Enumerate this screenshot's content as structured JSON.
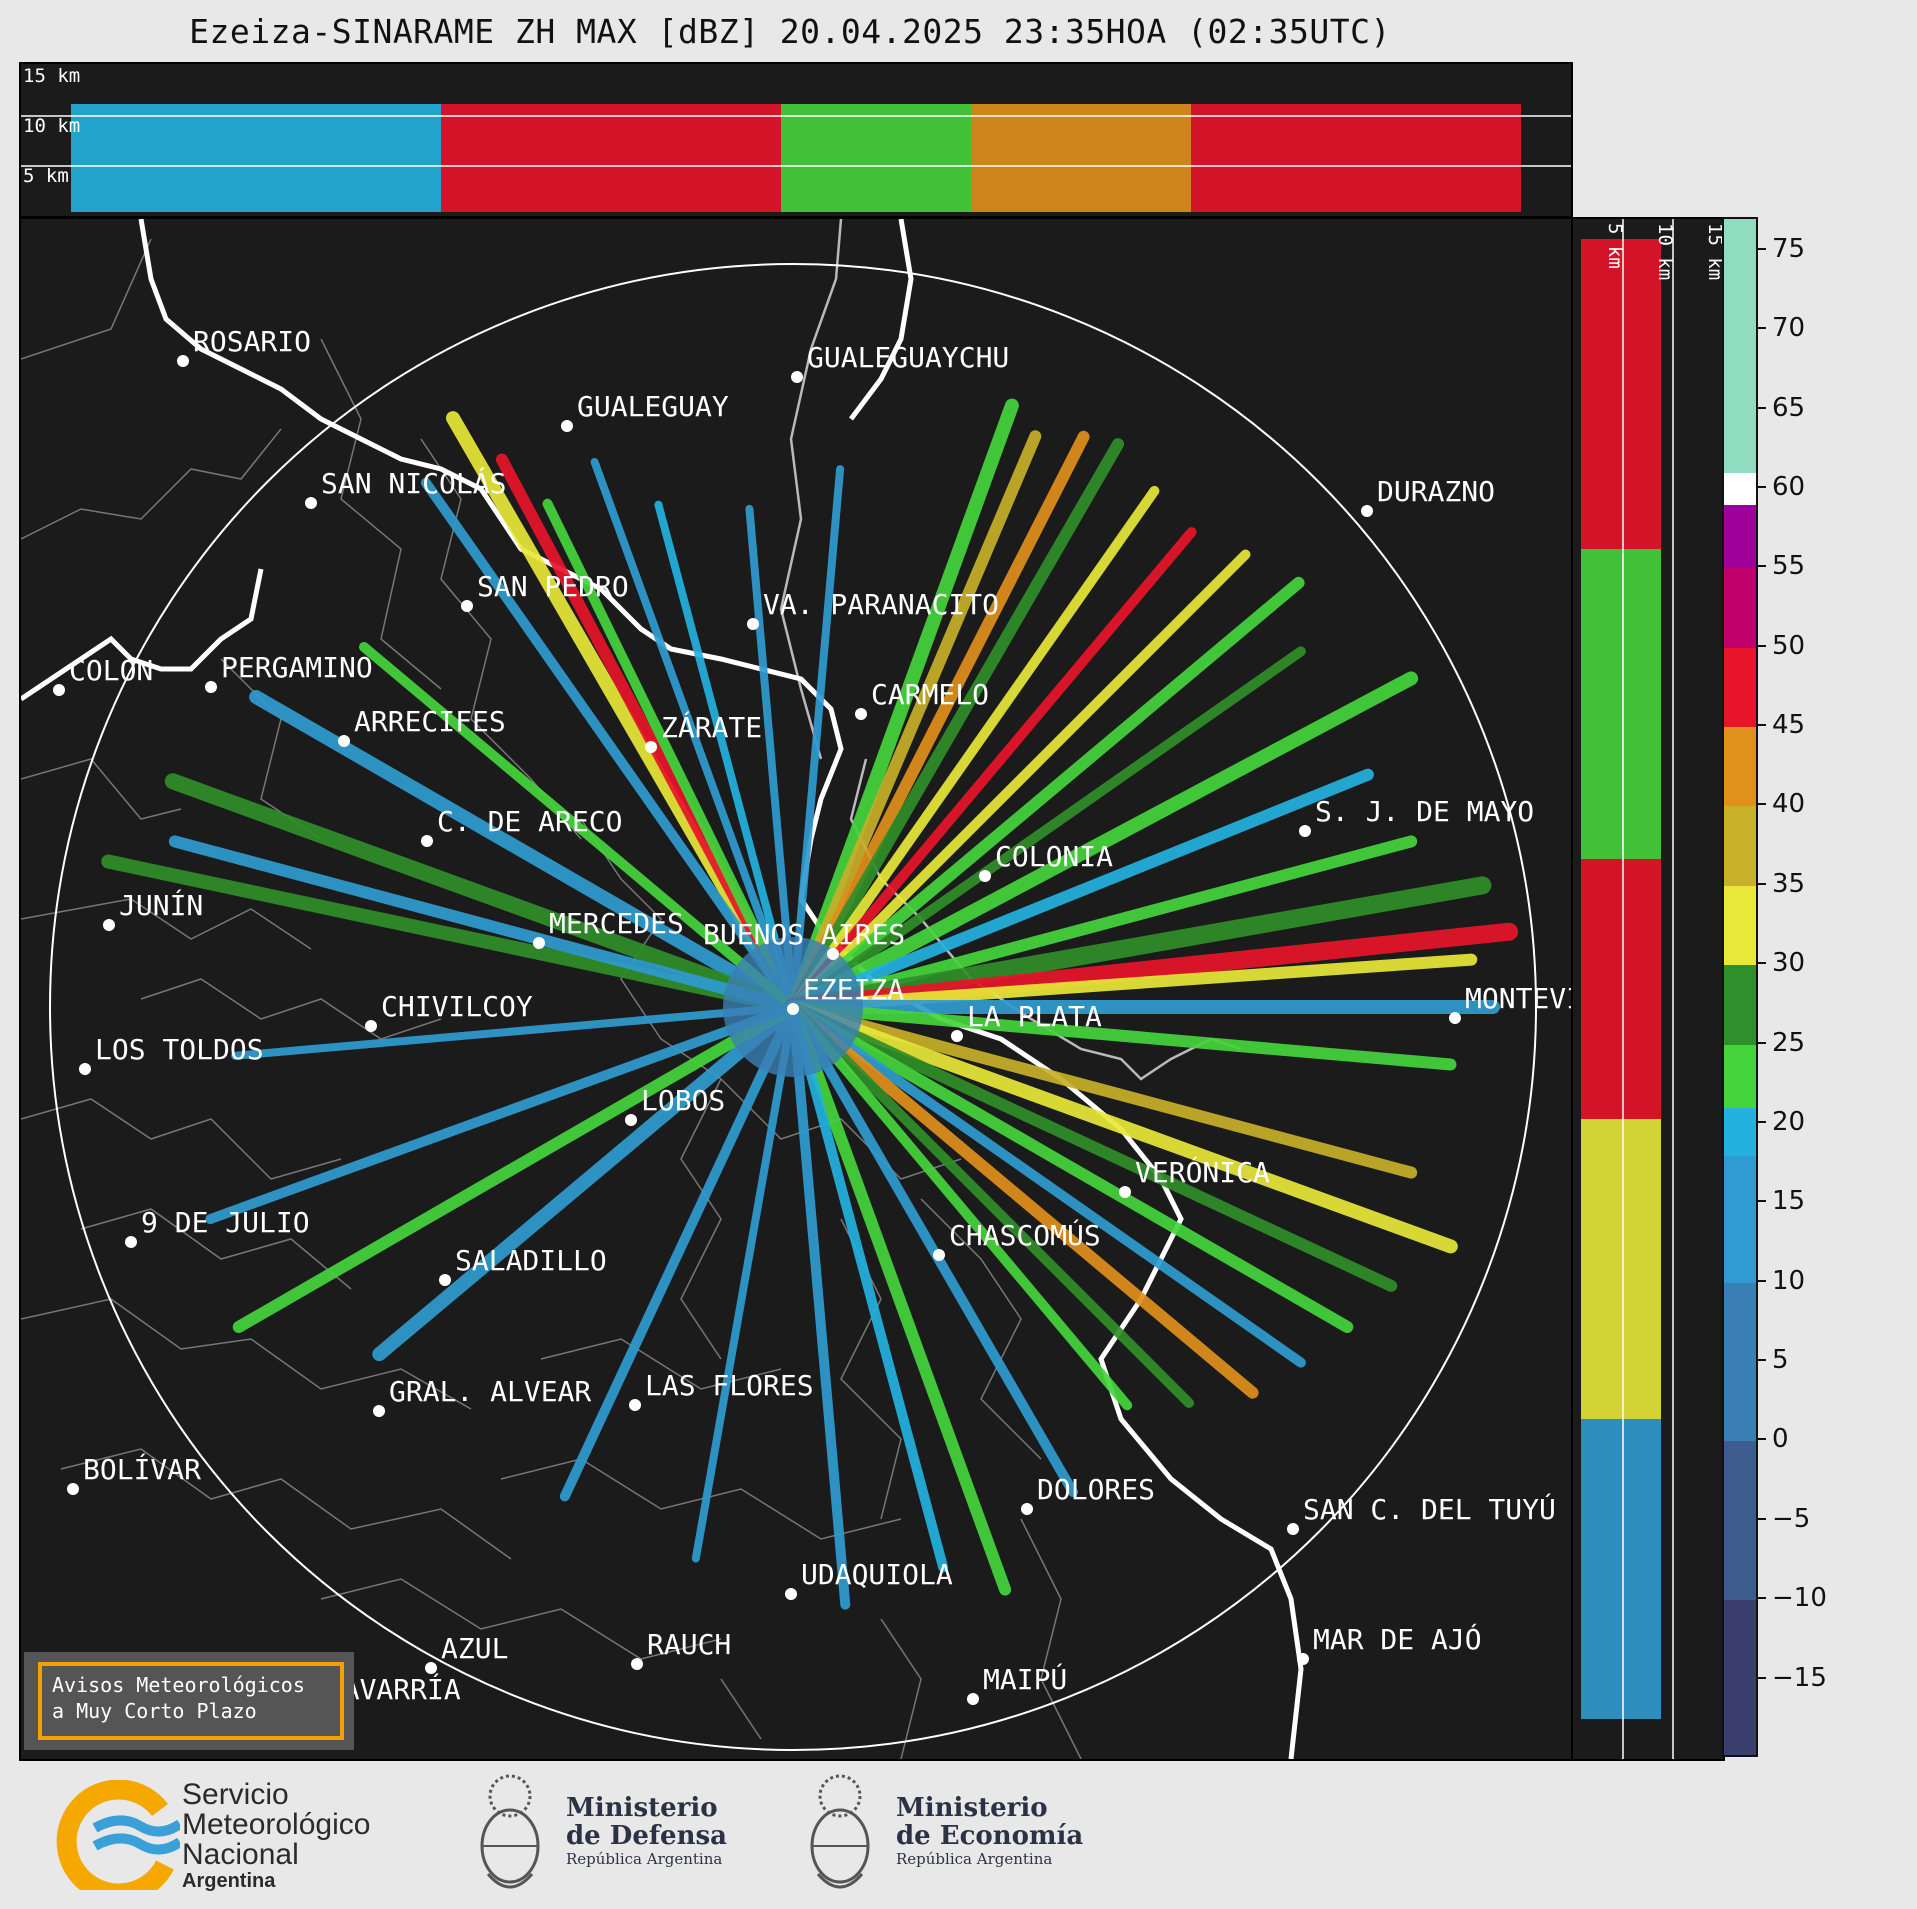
{
  "title": "Ezeiza-SINARAME ZH MAX [dBZ] 20.04.2025 23:35HOA (02:35UTC)",
  "height_labels": [
    "15 km",
    "10 km",
    "5 km"
  ],
  "colorbar": {
    "unit": "dBZ",
    "ticks": [
      "75",
      "70",
      "65",
      "60",
      "55",
      "50",
      "45",
      "40",
      "35",
      "30",
      "25",
      "20",
      "15",
      "10",
      "5",
      "0",
      "−5",
      "−10",
      "−15"
    ],
    "min": -20,
    "max": 77,
    "bands": [
      {
        "from": -20,
        "to": -10,
        "color": "#3b3f6e"
      },
      {
        "from": -10,
        "to": 0,
        "color": "#3e5c8e"
      },
      {
        "from": 0,
        "to": 10,
        "color": "#3a7fb4"
      },
      {
        "from": 10,
        "to": 18,
        "color": "#2f9bd0"
      },
      {
        "from": 18,
        "to": 21,
        "color": "#23b2e0"
      },
      {
        "from": 21,
        "to": 25,
        "color": "#45d43c"
      },
      {
        "from": 25,
        "to": 30,
        "color": "#2f8f2a"
      },
      {
        "from": 30,
        "to": 35,
        "color": "#e8e838"
      },
      {
        "from": 35,
        "to": 40,
        "color": "#c8b02a"
      },
      {
        "from": 40,
        "to": 45,
        "color": "#e0901c"
      },
      {
        "from": 45,
        "to": 50,
        "color": "#e8142a"
      },
      {
        "from": 50,
        "to": 55,
        "color": "#c0006a"
      },
      {
        "from": 55,
        "to": 59,
        "color": "#a0009a"
      },
      {
        "from": 59,
        "to": 61,
        "color": "#ffffff"
      },
      {
        "from": 61,
        "to": 77,
        "color": "#8fdcc0"
      }
    ]
  },
  "cities": [
    {
      "name": "ROSARIO"
    },
    {
      "name": "GUALEGUAYCHU"
    },
    {
      "name": "GUALEGUAY"
    },
    {
      "name": "SAN NICOLÁS"
    },
    {
      "name": "DURAZNO"
    },
    {
      "name": "SAN PEDRO"
    },
    {
      "name": "VA. PARANACITO"
    },
    {
      "name": "COLON"
    },
    {
      "name": "PERGAMINO"
    },
    {
      "name": "CARMELO"
    },
    {
      "name": "ARRECIFES"
    },
    {
      "name": "ZÁRATE"
    },
    {
      "name": "S. J. DE MAYO"
    },
    {
      "name": "C. DE ARECO"
    },
    {
      "name": "COLONIA"
    },
    {
      "name": "JUNÍN"
    },
    {
      "name": "BUENOS AIRES"
    },
    {
      "name": "MERCEDES"
    },
    {
      "name": "EZEIZA"
    },
    {
      "name": "MONTEVIDEO"
    },
    {
      "name": "CHIVILCOY"
    },
    {
      "name": "LA PLATA"
    },
    {
      "name": "LOS TOLDOS"
    },
    {
      "name": "LOBOS"
    },
    {
      "name": "VERÓNICA"
    },
    {
      "name": "9 DE JULIO"
    },
    {
      "name": "CHASCOMÚS"
    },
    {
      "name": "SALADILLO"
    },
    {
      "name": "GRAL. ALVEAR"
    },
    {
      "name": "LAS FLORES"
    },
    {
      "name": "BOLÍVAR"
    },
    {
      "name": "DOLORES"
    },
    {
      "name": "SAN C. DEL TUYÚ"
    },
    {
      "name": "UDAQUIOLA"
    },
    {
      "name": "MAR DE AJÓ"
    },
    {
      "name": "RAUCH"
    },
    {
      "name": "AZUL"
    },
    {
      "name": "OLAVARRÍA"
    },
    {
      "name": "MAIPÚ"
    }
  ],
  "warning_box": {
    "line1": "Avisos Meteorológicos",
    "line2": "a Muy Corto Plazo"
  },
  "footer": {
    "smn": {
      "line1": "Servicio",
      "line2": "Meteorológico",
      "line3": "Nacional",
      "line4": "Argentina"
    },
    "defensa": {
      "line1": "Ministerio",
      "line2": "de Defensa",
      "sub": "República Argentina"
    },
    "economia": {
      "line1": "Ministerio",
      "line2": "de Economía",
      "sub": "República Argentina"
    }
  }
}
